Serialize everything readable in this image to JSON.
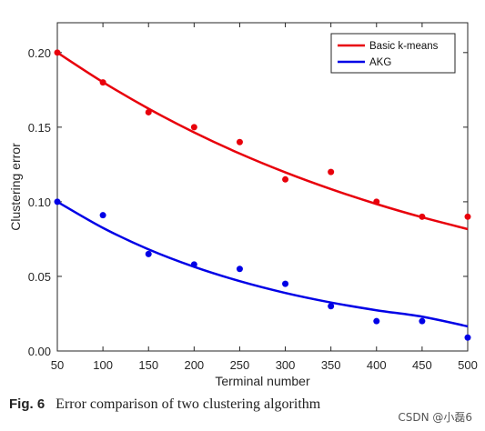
{
  "chart_data": {
    "type": "scatter",
    "xlabel": "Terminal number",
    "ylabel": "Clustering error",
    "xlim": [
      50,
      500
    ],
    "ylim": [
      0,
      0.22
    ],
    "x_ticks": [
      "50",
      "100",
      "150",
      "200",
      "250",
      "300",
      "350",
      "400",
      "450",
      "500"
    ],
    "y_ticks": [
      "0.00",
      "0.05",
      "0.10",
      "0.15",
      "0.20"
    ],
    "legend_position": "top-right",
    "grid": false,
    "series": [
      {
        "name": "Basic k-means",
        "color": "#e8000b",
        "x": [
          50,
          100,
          150,
          200,
          250,
          300,
          350,
          400,
          450,
          500
        ],
        "points": [
          0.2,
          0.18,
          0.16,
          0.15,
          0.14,
          0.115,
          0.12,
          0.1,
          0.09,
          0.09
        ],
        "fit": [
          0.2,
          0.1802,
          0.1624,
          0.1465,
          0.1323,
          0.1197,
          0.1085,
          0.0985,
          0.0896,
          0.0817
        ]
      },
      {
        "name": "AKG",
        "color": "#0000e6",
        "x": [
          50,
          100,
          150,
          200,
          250,
          300,
          350,
          400,
          450,
          500
        ],
        "points": [
          0.1,
          0.091,
          0.065,
          0.058,
          0.055,
          0.045,
          0.03,
          0.02,
          0.02,
          0.009
        ],
        "fit": [
          0.1,
          0.0825,
          0.0681,
          0.0564,
          0.0468,
          0.0389,
          0.0325,
          0.0273,
          0.023,
          0.0165
        ]
      }
    ]
  },
  "caption": {
    "label": "Fig. 6",
    "text": "Error comparison of two clustering algorithm"
  },
  "watermark": "CSDN @小磊6"
}
